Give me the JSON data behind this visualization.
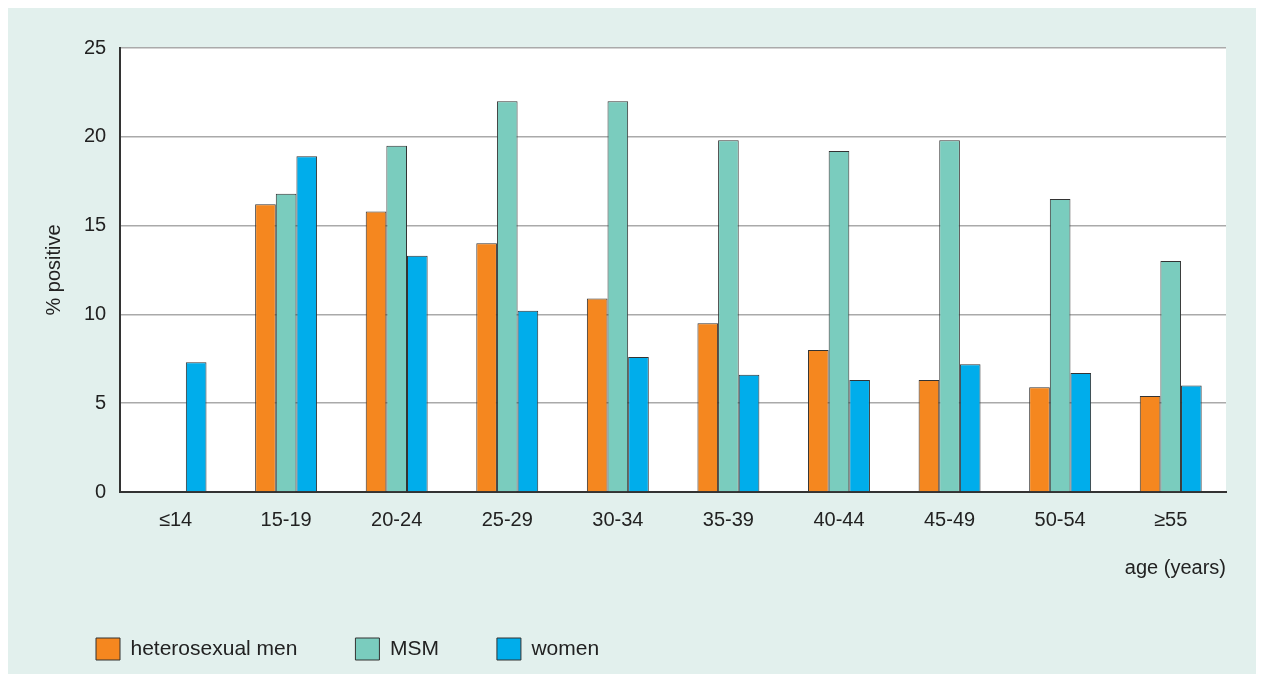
{
  "chart_data": {
    "type": "bar",
    "xlabel": "age (years)",
    "ylabel": "% positive",
    "categories": [
      "≤14",
      "15-19",
      "20-24",
      "25-29",
      "30-34",
      "35-39",
      "40-44",
      "45-49",
      "50-54",
      "≥55"
    ],
    "series": [
      {
        "name": "heterosexual men",
        "color": "#f5871f",
        "values": [
          null,
          16.2,
          15.8,
          14.0,
          10.9,
          9.5,
          8.0,
          6.3,
          5.9,
          5.4
        ]
      },
      {
        "name": "MSM",
        "color": "#7accbe",
        "values": [
          null,
          16.8,
          19.5,
          22.0,
          22.0,
          19.8,
          19.2,
          19.8,
          16.5,
          13.0
        ]
      },
      {
        "name": "women",
        "color": "#00adeb",
        "values": [
          7.3,
          18.9,
          13.3,
          10.2,
          7.6,
          6.6,
          6.3,
          7.2,
          6.7,
          6.0
        ]
      }
    ],
    "ylim": [
      0,
      25
    ],
    "yticks": [
      0,
      5,
      10,
      15,
      20,
      25
    ],
    "grid": "y",
    "legend": "bottom left"
  }
}
